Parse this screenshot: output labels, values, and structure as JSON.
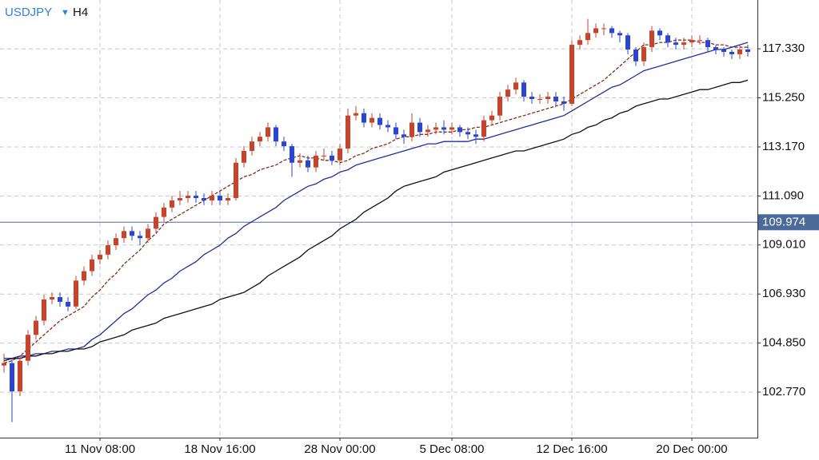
{
  "chart_data": {
    "type": "candlestick",
    "symbol": "USDJPY",
    "timeframe": "H4",
    "up_color": "#c9432a",
    "down_color": "#2a45d4",
    "grid": true,
    "ylim": [
      100.84,
      119.4
    ],
    "yticks": [
      {
        "value": 102.77,
        "label": "102.770"
      },
      {
        "value": 104.85,
        "label": "104.850"
      },
      {
        "value": 106.93,
        "label": "106.930"
      },
      {
        "value": 109.01,
        "label": "109.010"
      },
      {
        "value": 111.09,
        "label": "111.090"
      },
      {
        "value": 113.17,
        "label": "113.170"
      },
      {
        "value": 115.25,
        "label": "115.250"
      },
      {
        "value": 117.33,
        "label": "117.330"
      }
    ],
    "current_price": 109.974,
    "current_price_color": "#4a6b9a",
    "categories": [
      null,
      null,
      null,
      null,
      null,
      null,
      null,
      null,
      null,
      null,
      null,
      null,
      "11 Nov 08:00",
      null,
      null,
      null,
      null,
      null,
      null,
      null,
      null,
      null,
      null,
      null,
      null,
      null,
      null,
      "18 Nov 16:00",
      null,
      null,
      null,
      null,
      null,
      null,
      null,
      null,
      null,
      null,
      null,
      null,
      null,
      null,
      "28 Nov 00:00",
      null,
      null,
      null,
      null,
      null,
      null,
      null,
      null,
      null,
      null,
      null,
      null,
      null,
      "5 Dec 08:00",
      null,
      null,
      null,
      null,
      null,
      null,
      null,
      null,
      null,
      null,
      null,
      null,
      null,
      null,
      "12 Dec 16:00",
      null,
      null,
      null,
      null,
      null,
      null,
      null,
      null,
      null,
      null,
      null,
      null,
      null,
      null,
      "20 Dec 00:00",
      null,
      null,
      null,
      null,
      null,
      null,
      null
    ],
    "open": [
      103.9,
      104.0,
      102.8,
      104.1,
      105.2,
      105.8,
      106.7,
      106.8,
      106.6,
      106.4,
      107.5,
      107.9,
      108.4,
      108.6,
      109.0,
      109.3,
      109.6,
      109.4,
      109.3,
      109.7,
      110.2,
      110.6,
      110.9,
      111.0,
      111.1,
      111.0,
      110.9,
      111.1,
      110.9,
      111.0,
      112.5,
      113.0,
      113.4,
      113.6,
      114.0,
      113.4,
      113.2,
      112.5,
      112.6,
      112.3,
      112.8,
      112.8,
      112.6,
      113.1,
      114.5,
      114.6,
      114.2,
      114.4,
      114.1,
      114.0,
      113.7,
      113.6,
      114.2,
      113.8,
      113.9,
      114.0,
      113.9,
      114.0,
      113.8,
      113.7,
      113.6,
      114.3,
      114.5,
      115.3,
      115.6,
      115.9,
      115.3,
      115.2,
      115.2,
      115.3,
      115.1,
      115.0,
      117.5,
      117.7,
      118.0,
      118.2,
      118.2,
      118.0,
      117.9,
      117.3,
      116.8,
      117.4,
      118.1,
      117.9,
      117.6,
      117.5,
      117.6,
      117.7,
      117.7,
      117.4,
      117.3,
      117.2,
      117.1,
      117.3
    ],
    "high": [
      104.4,
      104.2,
      104.3,
      105.4,
      106.0,
      106.9,
      107.0,
      107.0,
      106.8,
      107.7,
      108.1,
      108.6,
      108.8,
      109.2,
      109.5,
      109.8,
      109.8,
      109.6,
      109.9,
      110.4,
      110.8,
      111.1,
      111.3,
      111.3,
      111.3,
      111.2,
      111.3,
      111.3,
      111.2,
      112.7,
      113.2,
      113.6,
      113.8,
      114.2,
      114.1,
      113.6,
      113.3,
      112.9,
      112.8,
      113.0,
      113.1,
      113.0,
      113.3,
      114.8,
      114.9,
      114.8,
      114.6,
      114.6,
      114.3,
      114.2,
      113.9,
      114.6,
      114.4,
      114.1,
      114.2,
      114.3,
      114.2,
      114.1,
      114.0,
      113.9,
      114.5,
      114.7,
      115.5,
      115.8,
      116.1,
      116.0,
      115.5,
      115.4,
      115.5,
      115.5,
      115.3,
      117.7,
      117.9,
      118.6,
      118.4,
      118.4,
      118.3,
      118.1,
      118.0,
      117.4,
      117.6,
      118.3,
      118.2,
      118.0,
      117.8,
      117.8,
      117.9,
      117.9,
      117.8,
      117.5,
      117.4,
      117.3,
      117.5,
      117.5
    ],
    "low": [
      103.6,
      101.5,
      102.6,
      103.9,
      105.0,
      105.6,
      106.5,
      106.4,
      106.2,
      106.3,
      107.3,
      107.7,
      108.2,
      108.4,
      108.8,
      109.1,
      109.2,
      109.0,
      109.1,
      109.5,
      110.0,
      110.4,
      110.7,
      110.8,
      110.8,
      110.7,
      110.7,
      110.7,
      110.7,
      110.9,
      112.3,
      112.8,
      113.2,
      113.4,
      113.2,
      113.0,
      111.9,
      112.3,
      112.1,
      112.1,
      112.6,
      112.4,
      112.4,
      112.9,
      114.3,
      114.0,
      114.0,
      113.9,
      113.8,
      113.5,
      113.3,
      113.4,
      113.6,
      113.6,
      113.7,
      113.7,
      113.7,
      113.6,
      113.5,
      113.3,
      113.4,
      114.1,
      114.3,
      115.1,
      115.4,
      115.1,
      115.0,
      115.0,
      115.0,
      114.9,
      114.7,
      114.9,
      117.3,
      117.5,
      117.8,
      117.9,
      117.8,
      117.6,
      117.1,
      116.6,
      116.6,
      117.2,
      117.7,
      117.4,
      117.3,
      117.3,
      117.4,
      117.5,
      117.2,
      117.1,
      117.0,
      116.9,
      116.9,
      117.0
    ],
    "close": [
      104.0,
      102.8,
      104.1,
      105.2,
      105.8,
      106.7,
      106.8,
      106.6,
      106.4,
      107.5,
      107.9,
      108.4,
      108.6,
      109.0,
      109.3,
      109.6,
      109.4,
      109.3,
      109.7,
      110.2,
      110.6,
      110.9,
      111.0,
      111.1,
      111.0,
      110.9,
      111.1,
      110.9,
      111.0,
      112.5,
      113.0,
      113.4,
      113.6,
      114.0,
      113.4,
      113.2,
      112.5,
      112.6,
      112.3,
      112.8,
      112.8,
      112.6,
      113.1,
      114.5,
      114.6,
      114.2,
      114.4,
      114.1,
      114.0,
      113.7,
      113.6,
      114.2,
      113.8,
      113.9,
      114.0,
      113.9,
      114.0,
      113.8,
      113.7,
      113.6,
      114.3,
      114.5,
      115.3,
      115.6,
      115.9,
      115.3,
      115.2,
      115.2,
      115.3,
      115.1,
      115.0,
      117.5,
      117.7,
      118.0,
      118.2,
      118.2,
      118.0,
      117.9,
      117.3,
      116.8,
      117.4,
      118.1,
      117.9,
      117.6,
      117.5,
      117.6,
      117.7,
      117.7,
      117.4,
      117.3,
      117.2,
      117.1,
      117.3,
      117.2
    ],
    "series": [
      {
        "color": "#8b2a1a",
        "dashed": true,
        "values": [
          104.0,
          104.1,
          104.3,
          104.6,
          104.9,
          105.2,
          105.5,
          105.8,
          106.0,
          106.2,
          106.4,
          106.8,
          107.1,
          107.5,
          107.8,
          108.2,
          108.5,
          108.8,
          109.2,
          109.5,
          109.9,
          110.1,
          110.3,
          110.5,
          110.7,
          110.9,
          111.1,
          111.3,
          111.5,
          111.7,
          111.9,
          112.0,
          112.2,
          112.3,
          112.4,
          112.6,
          112.7,
          112.8,
          112.7,
          112.7,
          112.6,
          112.6,
          112.5,
          112.6,
          112.8,
          112.9,
          113.1,
          113.2,
          113.3,
          113.5,
          113.6,
          113.6,
          113.7,
          113.7,
          113.8,
          113.8,
          113.8,
          113.9,
          113.9,
          114.0,
          114.0,
          114.1,
          114.2,
          114.3,
          114.4,
          114.5,
          114.6,
          114.7,
          114.8,
          114.9,
          115.0,
          115.2,
          115.4,
          115.6,
          115.8,
          116.0,
          116.3,
          116.6,
          116.9,
          117.2,
          117.5,
          117.5,
          117.6,
          117.6,
          117.7,
          117.7,
          117.7,
          117.6,
          117.6,
          117.5,
          117.5,
          117.4,
          117.4,
          117.4
        ]
      },
      {
        "color": "#1f2f9e",
        "dashed": false,
        "values": [
          104.2,
          104.2,
          104.3,
          104.3,
          104.4,
          104.4,
          104.5,
          104.5,
          104.6,
          104.6,
          104.7,
          105.0,
          105.2,
          105.5,
          105.8,
          106.1,
          106.3,
          106.6,
          106.9,
          107.1,
          107.4,
          107.6,
          107.9,
          108.1,
          108.3,
          108.6,
          108.8,
          109.0,
          109.3,
          109.5,
          109.8,
          110.0,
          110.2,
          110.4,
          110.6,
          110.9,
          111.1,
          111.3,
          111.5,
          111.6,
          111.8,
          111.9,
          112.1,
          112.2,
          112.4,
          112.5,
          112.6,
          112.7,
          112.8,
          112.9,
          113.0,
          113.1,
          113.2,
          113.3,
          113.3,
          113.4,
          113.4,
          113.4,
          113.4,
          113.5,
          113.5,
          113.6,
          113.7,
          113.8,
          113.9,
          114.0,
          114.1,
          114.2,
          114.3,
          114.4,
          114.5,
          114.7,
          114.9,
          115.1,
          115.3,
          115.5,
          115.7,
          115.8,
          116.0,
          116.2,
          116.4,
          116.5,
          116.6,
          116.7,
          116.8,
          116.9,
          117.0,
          117.1,
          117.2,
          117.3,
          117.3,
          117.4,
          117.5,
          117.6
        ]
      },
      {
        "color": "#111111",
        "dashed": false,
        "values": [
          104.1,
          104.2,
          104.2,
          104.3,
          104.3,
          104.4,
          104.4,
          104.5,
          104.5,
          104.6,
          104.6,
          104.7,
          104.9,
          105.0,
          105.1,
          105.2,
          105.4,
          105.5,
          105.6,
          105.7,
          105.9,
          106.0,
          106.1,
          106.2,
          106.3,
          106.4,
          106.5,
          106.7,
          106.8,
          106.9,
          107.0,
          107.2,
          107.4,
          107.7,
          107.9,
          108.1,
          108.3,
          108.5,
          108.8,
          109.0,
          109.2,
          109.4,
          109.7,
          109.9,
          110.1,
          110.4,
          110.6,
          110.8,
          111.0,
          111.3,
          111.5,
          111.6,
          111.7,
          111.8,
          111.9,
          112.1,
          112.2,
          112.3,
          112.4,
          112.5,
          112.6,
          112.7,
          112.8,
          112.9,
          113.0,
          113.0,
          113.1,
          113.2,
          113.3,
          113.4,
          113.5,
          113.7,
          113.8,
          114.0,
          114.1,
          114.3,
          114.4,
          114.6,
          114.7,
          114.9,
          115.0,
          115.1,
          115.2,
          115.2,
          115.3,
          115.4,
          115.5,
          115.6,
          115.6,
          115.7,
          115.8,
          115.9,
          115.9,
          116.0
        ]
      }
    ]
  }
}
